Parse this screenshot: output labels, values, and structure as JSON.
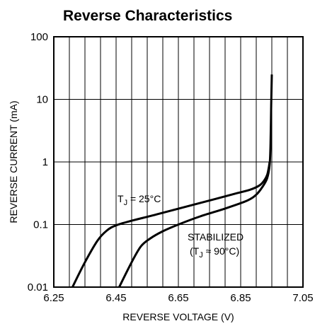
{
  "chart_data": {
    "type": "line",
    "title": "Reverse Characteristics",
    "xlabel": "REVERSE VOLTAGE (V)",
    "ylabel": "REVERSE CURRENT (mA)",
    "xlim": [
      6.25,
      7.05
    ],
    "ylim": [
      0.01,
      100
    ],
    "yscale": "log",
    "grid": true,
    "x_ticks": [
      6.25,
      6.45,
      6.65,
      6.85,
      7.05
    ],
    "x_tick_labels": [
      "6.25",
      "6.45",
      "6.65",
      "6.85",
      "7.05"
    ],
    "y_ticks": [
      0.01,
      0.1,
      1,
      10,
      100
    ],
    "y_tick_labels": [
      "0.01",
      "0.1",
      "1",
      "10",
      "100"
    ],
    "series": [
      {
        "annotation_parts": [
          "T",
          "J",
          " = 25°C"
        ],
        "x": [
          6.31,
          6.35,
          6.39,
          6.42,
          6.45,
          6.5,
          6.58,
          6.66,
          6.74,
          6.82,
          6.88,
          6.91,
          6.925,
          6.935,
          6.94,
          6.943
        ],
        "y": [
          0.01,
          0.025,
          0.055,
          0.08,
          0.097,
          0.115,
          0.145,
          0.185,
          0.235,
          0.3,
          0.36,
          0.42,
          0.5,
          0.62,
          0.8,
          1.0
        ]
      },
      {
        "annotation_parts": [
          "STABILIZED",
          "(T",
          "J",
          " ≈ 90°C)"
        ],
        "x": [
          6.46,
          6.5,
          6.53,
          6.56,
          6.6,
          6.65,
          6.72,
          6.8,
          6.87,
          6.9,
          6.92,
          6.935,
          6.943,
          6.946,
          6.948,
          6.95
        ],
        "y": [
          0.01,
          0.025,
          0.045,
          0.06,
          0.078,
          0.1,
          0.135,
          0.18,
          0.24,
          0.3,
          0.4,
          0.55,
          0.9,
          2.0,
          8.0,
          25.0
        ]
      }
    ]
  }
}
